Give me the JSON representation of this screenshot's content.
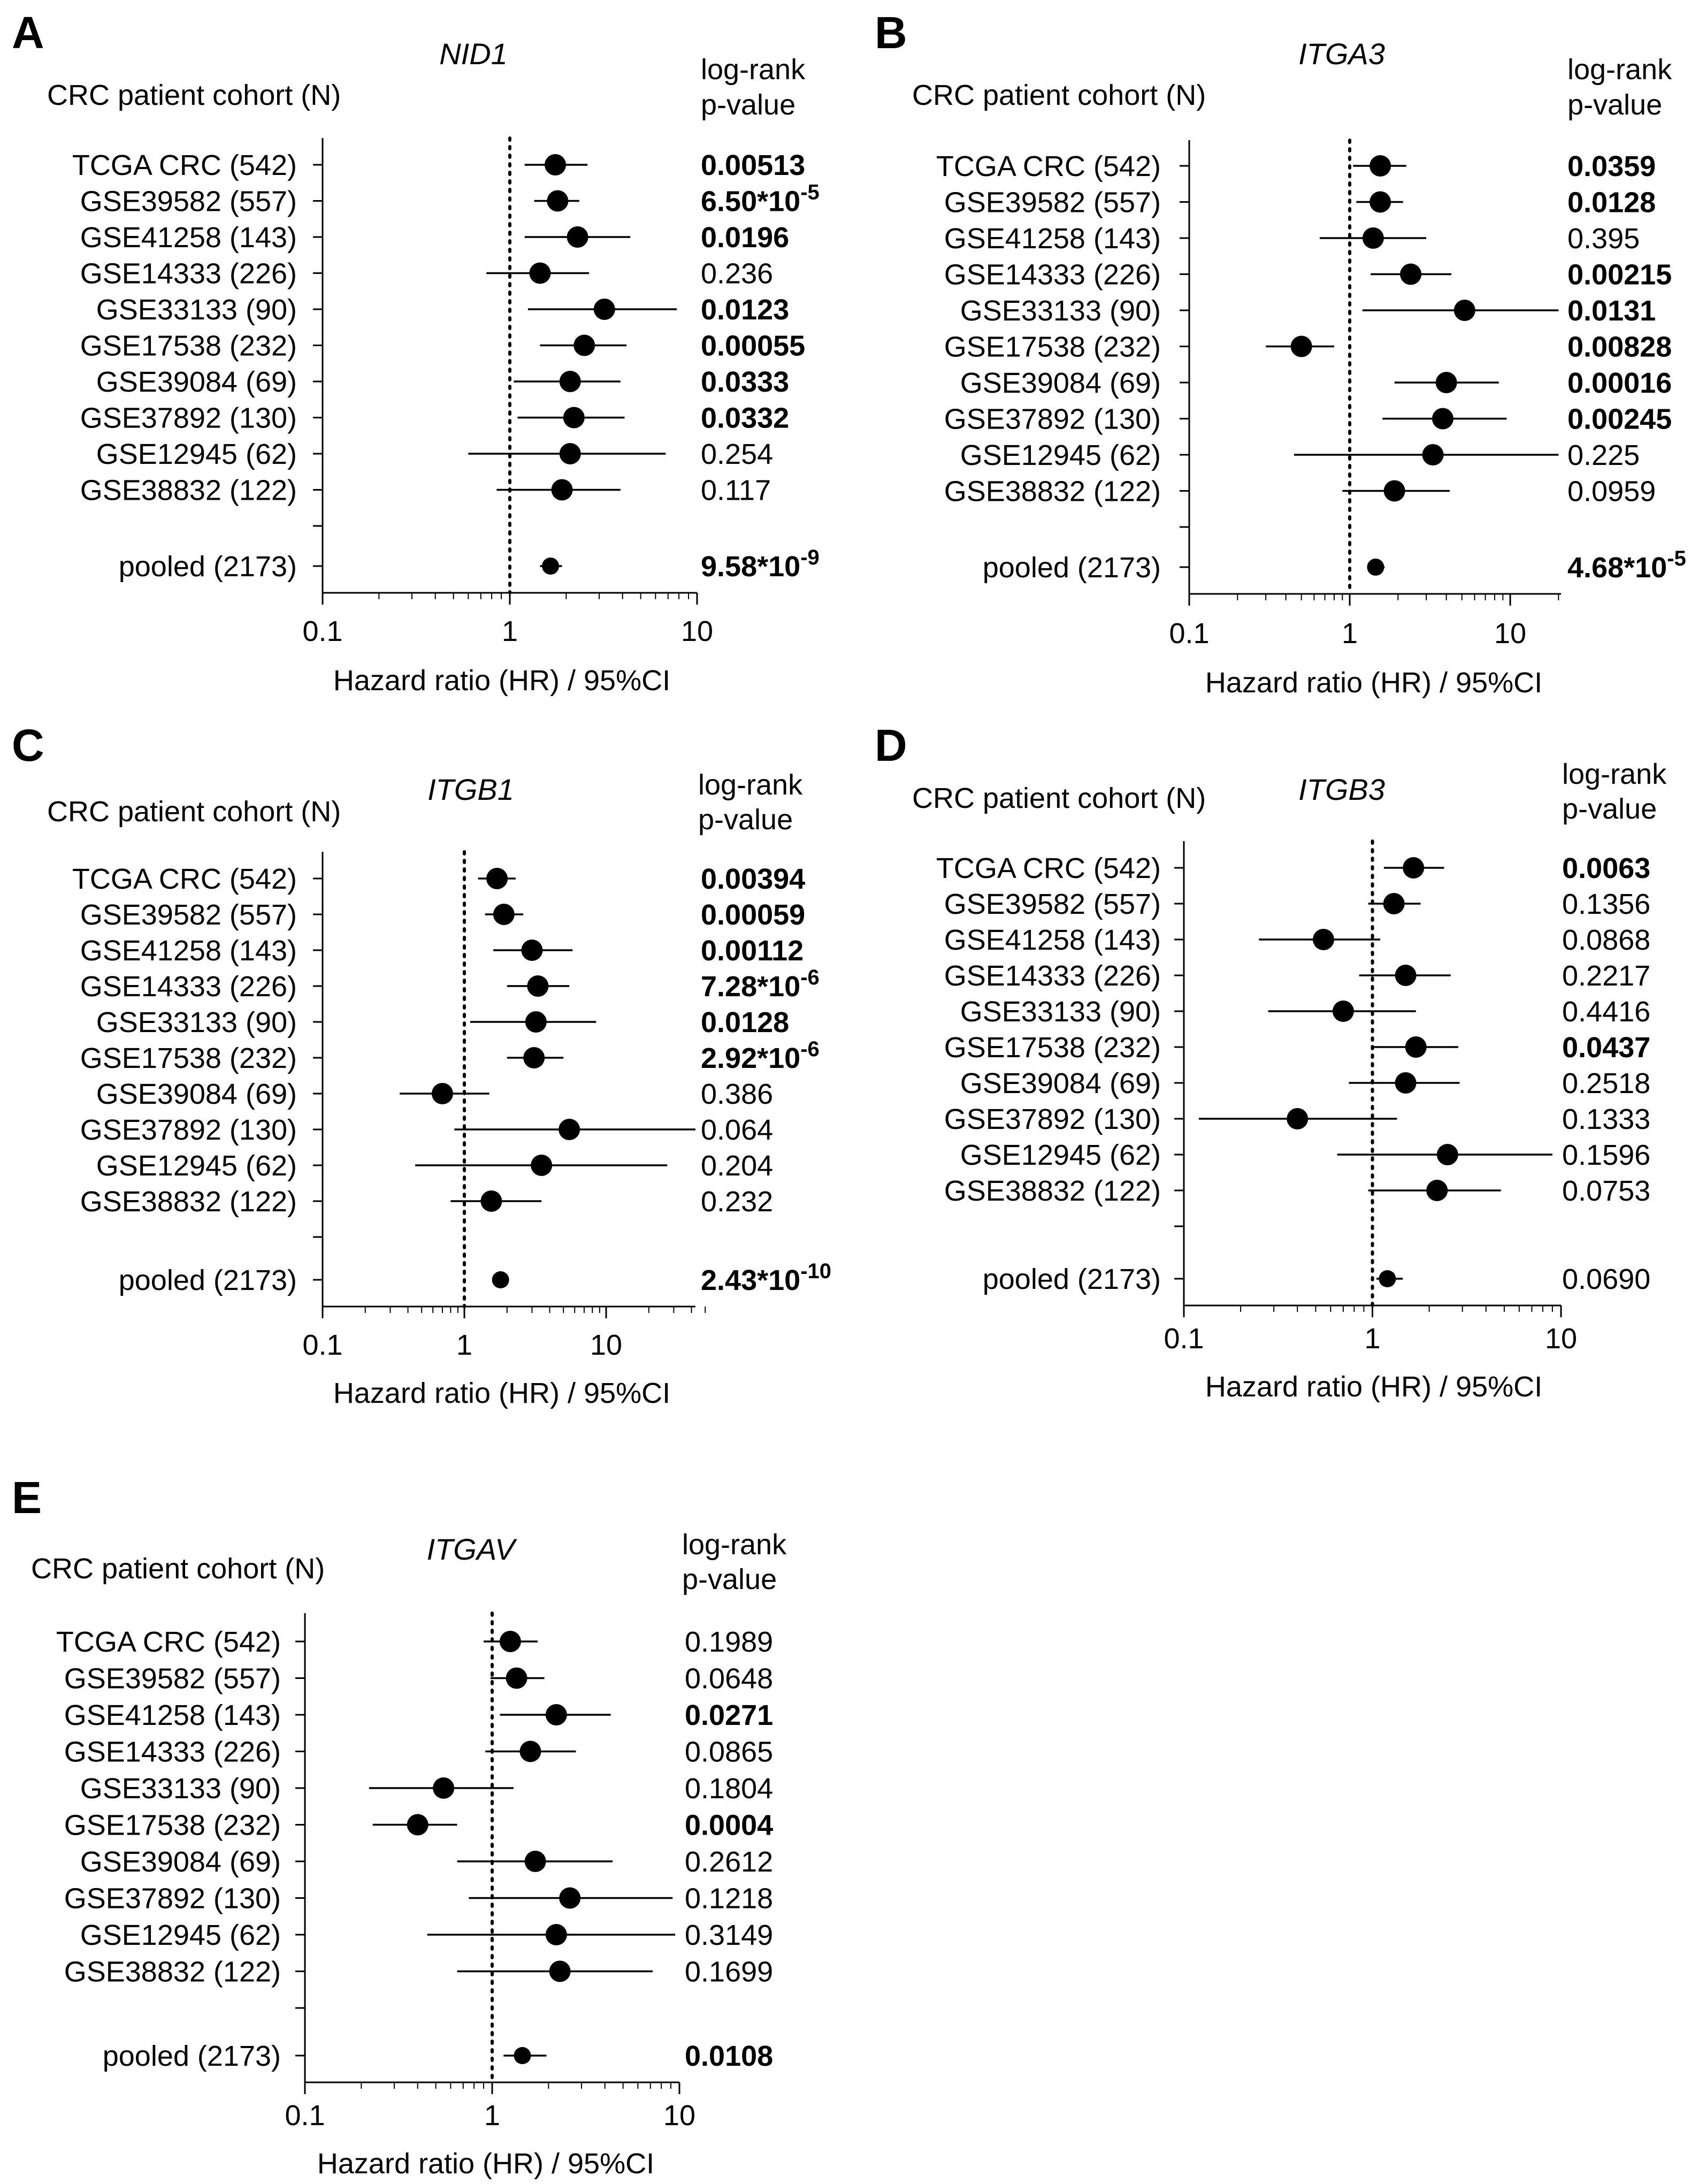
{
  "shared": {
    "cohort_header": "CRC patient cohort (N)",
    "pvalue_header_line1": "log-rank",
    "pvalue_header_line2": "p-value",
    "xlabel": "Hazard  ratio (HR) / 95%CI"
  },
  "chart_data": [
    {
      "panel": "A",
      "gene": "NID1",
      "type": "forest",
      "x_scale": "log",
      "xlim": [
        0.1,
        10
      ],
      "xticks": [
        "0.1",
        "1",
        "10"
      ],
      "reference_line": 1,
      "rows": [
        {
          "cohort": "TCGA CRC (542)",
          "hr": 1.75,
          "ci": [
            1.2,
            2.6
          ],
          "p": "0.00513",
          "bold": true
        },
        {
          "cohort": "GSE39582  (557)",
          "hr": 1.8,
          "ci": [
            1.35,
            2.35
          ],
          "p": "6.50*10",
          "exp": "-5",
          "bold": true
        },
        {
          "cohort": "GSE41258 (143)",
          "hr": 2.3,
          "ci": [
            1.2,
            4.4
          ],
          "p": "0.0196",
          "bold": true
        },
        {
          "cohort": "GSE14333 (226)",
          "hr": 1.45,
          "ci": [
            0.75,
            2.65
          ],
          "p": "0.236",
          "bold": false
        },
        {
          "cohort": "GSE33133  (90)",
          "hr": 3.2,
          "ci": [
            1.25,
            7.8
          ],
          "p": "0.0123",
          "bold": true
        },
        {
          "cohort": "GSE17538 (232)",
          "hr": 2.5,
          "ci": [
            1.45,
            4.2
          ],
          "p": "0.00055",
          "bold": true
        },
        {
          "cohort": "GSE39084 (69)",
          "hr": 2.1,
          "ci": [
            1.05,
            3.9
          ],
          "p": "0.0333",
          "bold": true
        },
        {
          "cohort": "GSE37892 (130)",
          "hr": 2.2,
          "ci": [
            1.1,
            4.1
          ],
          "p": "0.0332",
          "bold": true
        },
        {
          "cohort": "GSE12945 (62)",
          "hr": 2.1,
          "ci": [
            0.6,
            6.8
          ],
          "p": "0.254",
          "bold": false
        },
        {
          "cohort": "GSE38832 (122)",
          "hr": 1.9,
          "ci": [
            0.85,
            3.9
          ],
          "p": "0.117",
          "bold": false
        }
      ],
      "pooled": {
        "cohort": "pooled  (2173)",
        "hr": 1.65,
        "ci": [
          1.45,
          1.9
        ],
        "p": "9.58*10",
        "exp": "-9",
        "bold": true
      }
    },
    {
      "panel": "B",
      "gene": "ITGA3",
      "type": "forest",
      "x_scale": "log",
      "xlim": [
        0.1,
        20
      ],
      "xticks": [
        "0.1",
        "1",
        "10"
      ],
      "reference_line": 1,
      "rows": [
        {
          "cohort": "TCGA CRC (542)",
          "hr": 1.55,
          "ci": [
            1.05,
            2.25
          ],
          "p": "0.0359",
          "bold": true
        },
        {
          "cohort": "GSE39582  (557)",
          "hr": 1.55,
          "ci": [
            1.1,
            2.15
          ],
          "p": "0.0128",
          "bold": true
        },
        {
          "cohort": "GSE41258 (143)",
          "hr": 1.4,
          "ci": [
            0.65,
            3.0
          ],
          "p": "0.395",
          "bold": false
        },
        {
          "cohort": "GSE14333 (226)",
          "hr": 2.4,
          "ci": [
            1.35,
            4.3
          ],
          "p": "0.00215",
          "bold": true
        },
        {
          "cohort": "GSE33133  (90)",
          "hr": 5.2,
          "ci": [
            1.2,
            20
          ],
          "p": "0.0131",
          "bold": true
        },
        {
          "cohort": "GSE17538 (232)",
          "hr": 0.5,
          "ci": [
            0.3,
            0.8
          ],
          "p": "0.00828",
          "bold": true
        },
        {
          "cohort": "GSE39084 (69)",
          "hr": 4.0,
          "ci": [
            1.9,
            8.5
          ],
          "p": "0.00016",
          "bold": true
        },
        {
          "cohort": "GSE37892 (130)",
          "hr": 3.8,
          "ci": [
            1.6,
            9.5
          ],
          "p": "0.00245",
          "bold": true
        },
        {
          "cohort": "GSE12945 (62)",
          "hr": 3.3,
          "ci": [
            0.45,
            20
          ],
          "p": "0.225",
          "bold": false
        },
        {
          "cohort": "GSE38832 (122)",
          "hr": 1.9,
          "ci": [
            0.9,
            4.2
          ],
          "p": "0.0959",
          "bold": false
        }
      ],
      "pooled": {
        "cohort": "pooled  (2173)",
        "hr": 1.45,
        "ci": [
          1.3,
          1.65
        ],
        "p": "4.68*10",
        "exp": "-5",
        "bold": true
      }
    },
    {
      "panel": "C",
      "gene": "ITGB1",
      "type": "forest",
      "x_scale": "log",
      "xlim": [
        0.1,
        50
      ],
      "xticks": [
        "0.1",
        "1",
        "10"
      ],
      "reference_line": 1,
      "rows": [
        {
          "cohort": "TCGA CRC (542)",
          "hr": 1.7,
          "ci": [
            1.25,
            2.3
          ],
          "p": "0.00394",
          "bold": true
        },
        {
          "cohort": "GSE39582  (557)",
          "hr": 1.9,
          "ci": [
            1.4,
            2.6
          ],
          "p": "0.00059",
          "bold": true
        },
        {
          "cohort": "GSE41258 (143)",
          "hr": 3.0,
          "ci": [
            1.6,
            5.8
          ],
          "p": "0.00112",
          "bold": true
        },
        {
          "cohort": "GSE14333 (226)",
          "hr": 3.3,
          "ci": [
            2.0,
            5.5
          ],
          "p": "7.28*10",
          "exp": "-6",
          "bold": true
        },
        {
          "cohort": "GSE33133  (90)",
          "hr": 3.2,
          "ci": [
            1.1,
            8.5
          ],
          "p": "0.0128",
          "bold": true
        },
        {
          "cohort": "GSE17538 (232)",
          "hr": 3.1,
          "ci": [
            2.0,
            5.0
          ],
          "p": "2.92*10",
          "exp": "-6",
          "bold": true
        },
        {
          "cohort": "GSE39084 (69)",
          "hr": 0.7,
          "ci": [
            0.35,
            1.5
          ],
          "p": "0.386",
          "bold": false
        },
        {
          "cohort": "GSE37892 (130)",
          "hr": 5.5,
          "ci": [
            0.85,
            50
          ],
          "p": "0.064",
          "bold": false
        },
        {
          "cohort": "GSE12945 (62)",
          "hr": 3.5,
          "ci": [
            0.45,
            27
          ],
          "p": "0.204",
          "bold": false
        },
        {
          "cohort": "GSE38832 (122)",
          "hr": 1.55,
          "ci": [
            0.8,
            3.5
          ],
          "p": "0.232",
          "bold": false
        }
      ],
      "pooled": {
        "cohort": "pooled  (2173)",
        "hr": 1.8,
        "ci": [
          1.6,
          2.05
        ],
        "p": "2.43*10",
        "exp": "-10",
        "bold": true
      }
    },
    {
      "panel": "D",
      "gene": "ITGB3",
      "type": "forest",
      "x_scale": "log",
      "xlim": [
        0.1,
        10
      ],
      "xticks": [
        "0.1",
        "1",
        "10"
      ],
      "reference_line": 1,
      "rows": [
        {
          "cohort": "TCGA CRC (542)",
          "hr": 1.65,
          "ci": [
            1.15,
            2.4
          ],
          "p": "0.0063",
          "bold": true
        },
        {
          "cohort": "GSE39582  (557)",
          "hr": 1.3,
          "ci": [
            0.95,
            1.8
          ],
          "p": "0.1356",
          "bold": false
        },
        {
          "cohort": "GSE41258 (143)",
          "hr": 0.55,
          "ci": [
            0.25,
            1.1
          ],
          "p": "0.0868",
          "bold": false
        },
        {
          "cohort": "GSE14333 (226)",
          "hr": 1.5,
          "ci": [
            0.85,
            2.6
          ],
          "p": "0.2217",
          "bold": false
        },
        {
          "cohort": "GSE33133  (90)",
          "hr": 0.7,
          "ci": [
            0.28,
            1.7
          ],
          "p": "0.4416",
          "bold": false
        },
        {
          "cohort": "GSE17538 (232)",
          "hr": 1.7,
          "ci": [
            1.0,
            2.85
          ],
          "p": "0.0437",
          "bold": true
        },
        {
          "cohort": "GSE39084 (69)",
          "hr": 1.5,
          "ci": [
            0.75,
            2.9
          ],
          "p": "0.2518",
          "bold": false
        },
        {
          "cohort": "GSE37892 (130)",
          "hr": 0.4,
          "ci": [
            0.12,
            1.35
          ],
          "p": "0.1333",
          "bold": false
        },
        {
          "cohort": "GSE12945 (62)",
          "hr": 2.5,
          "ci": [
            0.65,
            9.0
          ],
          "p": "0.1596",
          "bold": false
        },
        {
          "cohort": "GSE38832 (122)",
          "hr": 2.2,
          "ci": [
            0.95,
            4.8
          ],
          "p": "0.0753",
          "bold": false
        }
      ],
      "pooled": {
        "cohort": "pooled  (2173)",
        "hr": 1.2,
        "ci": [
          1.05,
          1.45
        ],
        "p": "0.0690",
        "bold": false
      }
    },
    {
      "panel": "E",
      "gene": "ITGAV",
      "type": "forest",
      "x_scale": "log",
      "xlim": [
        0.1,
        10
      ],
      "xticks": [
        "0.1",
        "1",
        "10"
      ],
      "reference_line": 1,
      "rows": [
        {
          "cohort": "TCGA CRC (542)",
          "hr": 1.25,
          "ci": [
            0.9,
            1.75
          ],
          "p": "0.1989",
          "bold": false
        },
        {
          "cohort": "GSE39582  (557)",
          "hr": 1.35,
          "ci": [
            0.98,
            1.9
          ],
          "p": "0.0648",
          "bold": false
        },
        {
          "cohort": "GSE41258 (143)",
          "hr": 2.2,
          "ci": [
            1.1,
            4.3
          ],
          "p": "0.0271",
          "bold": true
        },
        {
          "cohort": "GSE14333 (226)",
          "hr": 1.6,
          "ci": [
            0.92,
            2.8
          ],
          "p": "0.0865",
          "bold": false
        },
        {
          "cohort": "GSE33133  (90)",
          "hr": 0.55,
          "ci": [
            0.22,
            1.3
          ],
          "p": "0.1804",
          "bold": false
        },
        {
          "cohort": "GSE17538 (232)",
          "hr": 0.4,
          "ci": [
            0.23,
            0.65
          ],
          "p": "0.0004",
          "bold": true
        },
        {
          "cohort": "GSE39084 (69)",
          "hr": 1.7,
          "ci": [
            0.65,
            4.4
          ],
          "p": "0.2612",
          "bold": false
        },
        {
          "cohort": "GSE37892 (130)",
          "hr": 2.6,
          "ci": [
            0.75,
            9.2
          ],
          "p": "0.1218",
          "bold": false
        },
        {
          "cohort": "GSE12945 (62)",
          "hr": 2.2,
          "ci": [
            0.45,
            9.5
          ],
          "p": "0.3149",
          "bold": false
        },
        {
          "cohort": "GSE38832 (122)",
          "hr": 2.3,
          "ci": [
            0.65,
            7.2
          ],
          "p": "0.1699",
          "bold": false
        }
      ],
      "pooled": {
        "cohort": "pooled  (2173)",
        "hr": 1.45,
        "ci": [
          1.15,
          1.95
        ],
        "p": "0.0108",
        "bold": true
      }
    }
  ]
}
